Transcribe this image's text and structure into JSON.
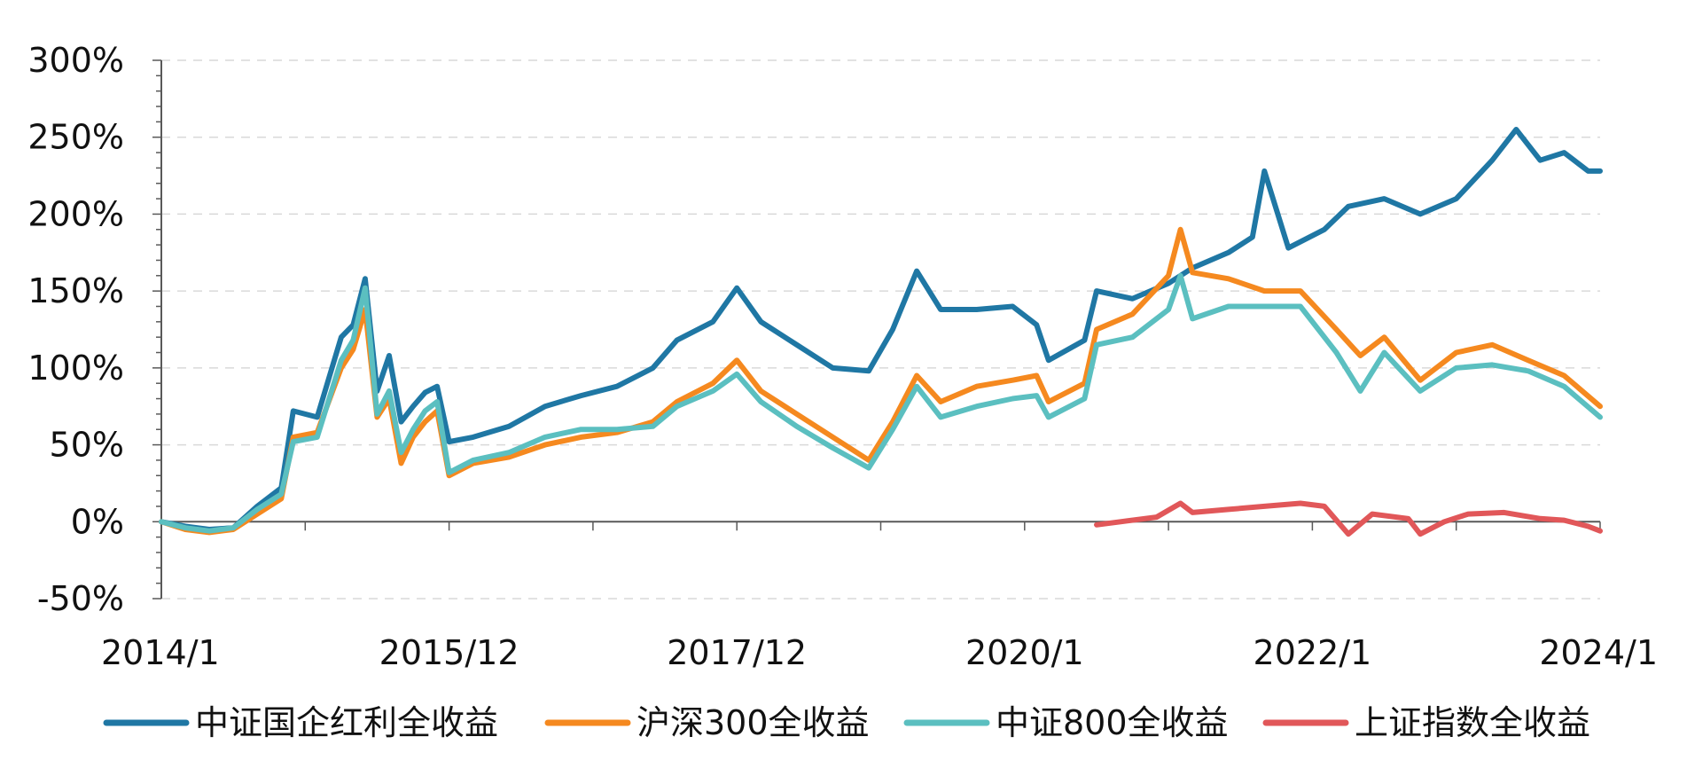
{
  "chart_data": {
    "type": "line",
    "title": "",
    "xlabel": "",
    "ylabel": "",
    "x_ticks": [
      "2014/1",
      "2015/12",
      "2017/12",
      "2020/1",
      "2022/1",
      "2024/1"
    ],
    "y_ticks": [
      "300%",
      "250%",
      "200%",
      "150%",
      "100%",
      "50%",
      "0%",
      "-50%"
    ],
    "ylim": [
      -50,
      300
    ],
    "xlim": [
      "2014-01",
      "2024-01"
    ],
    "grid": "horizontal dashed",
    "legend_position": "bottom",
    "series": [
      {
        "name": "中证国企红利全收益",
        "color": "#1f77a4",
        "points": [
          [
            "2014-01",
            0
          ],
          [
            "2014-03",
            -3
          ],
          [
            "2014-05",
            -5
          ],
          [
            "2014-07",
            -4
          ],
          [
            "2014-09",
            10
          ],
          [
            "2014-11",
            22
          ],
          [
            "2014-12",
            72
          ],
          [
            "2015-02",
            68
          ],
          [
            "2015-04",
            120
          ],
          [
            "2015-05",
            128
          ],
          [
            "2015-06",
            158
          ],
          [
            "2015-07",
            85
          ],
          [
            "2015-08",
            108
          ],
          [
            "2015-09",
            65
          ],
          [
            "2015-10",
            75
          ],
          [
            "2015-11",
            84
          ],
          [
            "2015-12",
            88
          ],
          [
            "2016-01",
            52
          ],
          [
            "2016-03",
            55
          ],
          [
            "2016-06",
            62
          ],
          [
            "2016-09",
            75
          ],
          [
            "2016-12",
            82
          ],
          [
            "2017-03",
            88
          ],
          [
            "2017-06",
            100
          ],
          [
            "2017-08",
            118
          ],
          [
            "2017-11",
            130
          ],
          [
            "2018-01",
            152
          ],
          [
            "2018-03",
            130
          ],
          [
            "2018-06",
            115
          ],
          [
            "2018-09",
            100
          ],
          [
            "2018-12",
            98
          ],
          [
            "2019-02",
            125
          ],
          [
            "2019-04",
            163
          ],
          [
            "2019-06",
            138
          ],
          [
            "2019-09",
            138
          ],
          [
            "2019-12",
            140
          ],
          [
            "2020-02",
            128
          ],
          [
            "2020-03",
            105
          ],
          [
            "2020-06",
            118
          ],
          [
            "2020-07",
            150
          ],
          [
            "2020-10",
            145
          ],
          [
            "2021-01",
            155
          ],
          [
            "2021-03",
            165
          ],
          [
            "2021-06",
            175
          ],
          [
            "2021-08",
            185
          ],
          [
            "2021-09",
            228
          ],
          [
            "2021-11",
            178
          ],
          [
            "2022-02",
            190
          ],
          [
            "2022-04",
            205
          ],
          [
            "2022-07",
            210
          ],
          [
            "2022-10",
            200
          ],
          [
            "2023-01",
            210
          ],
          [
            "2023-04",
            235
          ],
          [
            "2023-06",
            255
          ],
          [
            "2023-08",
            235
          ],
          [
            "2023-10",
            240
          ],
          [
            "2023-12",
            228
          ],
          [
            "2024-01",
            228
          ]
        ]
      },
      {
        "name": "沪深300全收益",
        "color": "#f5891f",
        "points": [
          [
            "2014-01",
            0
          ],
          [
            "2014-03",
            -5
          ],
          [
            "2014-05",
            -7
          ],
          [
            "2014-07",
            -5
          ],
          [
            "2014-09",
            5
          ],
          [
            "2014-11",
            15
          ],
          [
            "2014-12",
            55
          ],
          [
            "2015-02",
            58
          ],
          [
            "2015-04",
            100
          ],
          [
            "2015-05",
            112
          ],
          [
            "2015-06",
            138
          ],
          [
            "2015-07",
            68
          ],
          [
            "2015-08",
            80
          ],
          [
            "2015-09",
            38
          ],
          [
            "2015-10",
            55
          ],
          [
            "2015-11",
            65
          ],
          [
            "2015-12",
            72
          ],
          [
            "2016-01",
            30
          ],
          [
            "2016-03",
            38
          ],
          [
            "2016-06",
            42
          ],
          [
            "2016-09",
            50
          ],
          [
            "2016-12",
            55
          ],
          [
            "2017-03",
            58
          ],
          [
            "2017-06",
            65
          ],
          [
            "2017-08",
            78
          ],
          [
            "2017-11",
            90
          ],
          [
            "2018-01",
            105
          ],
          [
            "2018-03",
            85
          ],
          [
            "2018-06",
            70
          ],
          [
            "2018-09",
            55
          ],
          [
            "2018-12",
            40
          ],
          [
            "2019-02",
            65
          ],
          [
            "2019-04",
            95
          ],
          [
            "2019-06",
            78
          ],
          [
            "2019-09",
            88
          ],
          [
            "2019-12",
            92
          ],
          [
            "2020-02",
            95
          ],
          [
            "2020-03",
            78
          ],
          [
            "2020-06",
            90
          ],
          [
            "2020-07",
            125
          ],
          [
            "2020-10",
            135
          ],
          [
            "2021-01",
            160
          ],
          [
            "2021-02",
            190
          ],
          [
            "2021-03",
            162
          ],
          [
            "2021-06",
            158
          ],
          [
            "2021-09",
            150
          ],
          [
            "2021-12",
            150
          ],
          [
            "2022-03",
            125
          ],
          [
            "2022-05",
            108
          ],
          [
            "2022-07",
            120
          ],
          [
            "2022-10",
            92
          ],
          [
            "2023-01",
            110
          ],
          [
            "2023-04",
            115
          ],
          [
            "2023-07",
            105
          ],
          [
            "2023-10",
            95
          ],
          [
            "2024-01",
            75
          ]
        ]
      },
      {
        "name": "中证800全收益",
        "color": "#5bbfc0",
        "points": [
          [
            "2014-01",
            0
          ],
          [
            "2014-03",
            -4
          ],
          [
            "2014-05",
            -6
          ],
          [
            "2014-07",
            -4
          ],
          [
            "2014-09",
            8
          ],
          [
            "2014-11",
            18
          ],
          [
            "2014-12",
            52
          ],
          [
            "2015-02",
            55
          ],
          [
            "2015-04",
            105
          ],
          [
            "2015-05",
            118
          ],
          [
            "2015-06",
            152
          ],
          [
            "2015-07",
            70
          ],
          [
            "2015-08",
            85
          ],
          [
            "2015-09",
            45
          ],
          [
            "2015-10",
            60
          ],
          [
            "2015-11",
            72
          ],
          [
            "2015-12",
            78
          ],
          [
            "2016-01",
            32
          ],
          [
            "2016-03",
            40
          ],
          [
            "2016-06",
            45
          ],
          [
            "2016-09",
            55
          ],
          [
            "2016-12",
            60
          ],
          [
            "2017-03",
            60
          ],
          [
            "2017-06",
            62
          ],
          [
            "2017-08",
            75
          ],
          [
            "2017-11",
            85
          ],
          [
            "2018-01",
            96
          ],
          [
            "2018-03",
            78
          ],
          [
            "2018-06",
            62
          ],
          [
            "2018-09",
            48
          ],
          [
            "2018-12",
            35
          ],
          [
            "2019-02",
            60
          ],
          [
            "2019-04",
            88
          ],
          [
            "2019-06",
            68
          ],
          [
            "2019-09",
            75
          ],
          [
            "2019-12",
            80
          ],
          [
            "2020-02",
            82
          ],
          [
            "2020-03",
            68
          ],
          [
            "2020-06",
            80
          ],
          [
            "2020-07",
            115
          ],
          [
            "2020-10",
            120
          ],
          [
            "2021-01",
            138
          ],
          [
            "2021-02",
            160
          ],
          [
            "2021-03",
            132
          ],
          [
            "2021-06",
            140
          ],
          [
            "2021-09",
            140
          ],
          [
            "2021-12",
            140
          ],
          [
            "2022-03",
            110
          ],
          [
            "2022-05",
            85
          ],
          [
            "2022-07",
            110
          ],
          [
            "2022-10",
            85
          ],
          [
            "2023-01",
            100
          ],
          [
            "2023-04",
            102
          ],
          [
            "2023-07",
            98
          ],
          [
            "2023-10",
            88
          ],
          [
            "2024-01",
            68
          ]
        ]
      },
      {
        "name": "上证指数全收益",
        "color": "#e15759",
        "points": [
          [
            "2020-07",
            -2
          ],
          [
            "2020-09",
            0
          ],
          [
            "2020-12",
            3
          ],
          [
            "2021-02",
            12
          ],
          [
            "2021-03",
            6
          ],
          [
            "2021-06",
            8
          ],
          [
            "2021-09",
            10
          ],
          [
            "2021-12",
            12
          ],
          [
            "2022-02",
            10
          ],
          [
            "2022-04",
            -8
          ],
          [
            "2022-06",
            5
          ],
          [
            "2022-09",
            2
          ],
          [
            "2022-10",
            -8
          ],
          [
            "2022-12",
            0
          ],
          [
            "2023-02",
            5
          ],
          [
            "2023-05",
            6
          ],
          [
            "2023-08",
            2
          ],
          [
            "2023-10",
            1
          ],
          [
            "2023-12",
            -3
          ],
          [
            "2024-01",
            -6
          ]
        ]
      }
    ]
  }
}
